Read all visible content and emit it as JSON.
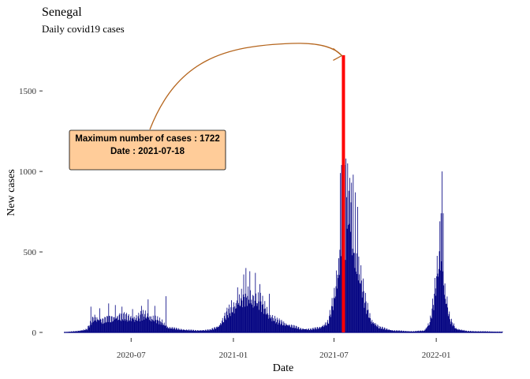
{
  "chart_data": {
    "type": "bar",
    "title": "Senegal",
    "subtitle": "Daily covid19 cases",
    "xlabel": "Date",
    "ylabel": "New cases",
    "x_range": [
      "2020-03-02",
      "2022-04-30"
    ],
    "ylim": [
      0,
      1800
    ],
    "y_ticks": [
      0,
      500,
      1000,
      1500
    ],
    "y_tick_labels": [
      "0",
      "500",
      "1000",
      "1500"
    ],
    "x_ticks": [
      "2020-07-01",
      "2021-01-01",
      "2021-07-01",
      "2022-01-01"
    ],
    "x_tick_labels": [
      "2020-07",
      "2021-01",
      "2021-07",
      "2022-01"
    ],
    "grid": false,
    "bar_color": "#000080",
    "highlight_color": "#ff0000",
    "arrow_color": "#b5651d",
    "label_fill": "#ffcc99",
    "envelope": [
      [
        "2020-03-02",
        2
      ],
      [
        "2020-03-25",
        10
      ],
      [
        "2020-04-12",
        25
      ],
      [
        "2020-04-25",
        120
      ],
      [
        "2020-05-10",
        95
      ],
      [
        "2020-05-25",
        110
      ],
      [
        "2020-06-10",
        130
      ],
      [
        "2020-06-25",
        120
      ],
      [
        "2020-07-10",
        115
      ],
      [
        "2020-07-25",
        140
      ],
      [
        "2020-08-10",
        110
      ],
      [
        "2020-08-25",
        80
      ],
      [
        "2020-09-05",
        40
      ],
      [
        "2020-09-25",
        25
      ],
      [
        "2020-10-25",
        15
      ],
      [
        "2020-11-20",
        20
      ],
      [
        "2020-12-05",
        50
      ],
      [
        "2020-12-20",
        150
      ],
      [
        "2021-01-05",
        230
      ],
      [
        "2021-01-20",
        290
      ],
      [
        "2021-02-05",
        280
      ],
      [
        "2021-02-20",
        230
      ],
      [
        "2021-03-05",
        150
      ],
      [
        "2021-03-20",
        90
      ],
      [
        "2021-04-10",
        60
      ],
      [
        "2021-05-01",
        30
      ],
      [
        "2021-05-20",
        25
      ],
      [
        "2021-06-05",
        40
      ],
      [
        "2021-06-20",
        80
      ],
      [
        "2021-07-01",
        280
      ],
      [
        "2021-07-10",
        600
      ],
      [
        "2021-07-18",
        760
      ],
      [
        "2021-07-28",
        850
      ],
      [
        "2021-08-05",
        720
      ],
      [
        "2021-08-15",
        500
      ],
      [
        "2021-08-25",
        250
      ],
      [
        "2021-09-05",
        100
      ],
      [
        "2021-09-20",
        40
      ],
      [
        "2021-10-15",
        15
      ],
      [
        "2021-11-20",
        8
      ],
      [
        "2021-12-10",
        15
      ],
      [
        "2021-12-20",
        80
      ],
      [
        "2021-12-27",
        250
      ],
      [
        "2022-01-04",
        550
      ],
      [
        "2022-01-10",
        530
      ],
      [
        "2022-01-17",
        300
      ],
      [
        "2022-01-25",
        100
      ],
      [
        "2022-02-05",
        30
      ],
      [
        "2022-02-25",
        10
      ],
      [
        "2022-04-30",
        5
      ]
    ],
    "spikes": [
      [
        "2020-04-19",
        160
      ],
      [
        "2020-05-05",
        150
      ],
      [
        "2020-05-21",
        180
      ],
      [
        "2020-06-02",
        170
      ],
      [
        "2020-06-14",
        160
      ],
      [
        "2020-07-03",
        145
      ],
      [
        "2020-07-19",
        165
      ],
      [
        "2020-07-31",
        205
      ],
      [
        "2020-08-12",
        165
      ],
      [
        "2020-09-01",
        225
      ],
      [
        "2020-12-28",
        200
      ],
      [
        "2021-01-08",
        280
      ],
      [
        "2021-01-19",
        360
      ],
      [
        "2021-01-23",
        400
      ],
      [
        "2021-01-30",
        380
      ],
      [
        "2021-02-09",
        370
      ],
      [
        "2021-02-17",
        300
      ],
      [
        "2021-03-06",
        240
      ],
      [
        "2021-07-12",
        990
      ],
      [
        "2021-07-14",
        1040
      ],
      [
        "2021-07-20",
        1040
      ],
      [
        "2021-07-22",
        1080
      ],
      [
        "2021-07-25",
        1050
      ],
      [
        "2021-07-29",
        960
      ],
      [
        "2021-08-01",
        930
      ],
      [
        "2021-08-04",
        980
      ],
      [
        "2021-08-08",
        870
      ],
      [
        "2021-08-12",
        780
      ],
      [
        "2022-01-07",
        690
      ],
      [
        "2022-01-09",
        740
      ],
      [
        "2022-01-11",
        1000
      ],
      [
        "2022-01-13",
        740
      ]
    ],
    "max_point": {
      "date": "2021-07-18",
      "value": 1722
    },
    "annotation": {
      "line1": "Maximum number of cases : 1722",
      "line2": "Date : 2021-07-18"
    }
  }
}
